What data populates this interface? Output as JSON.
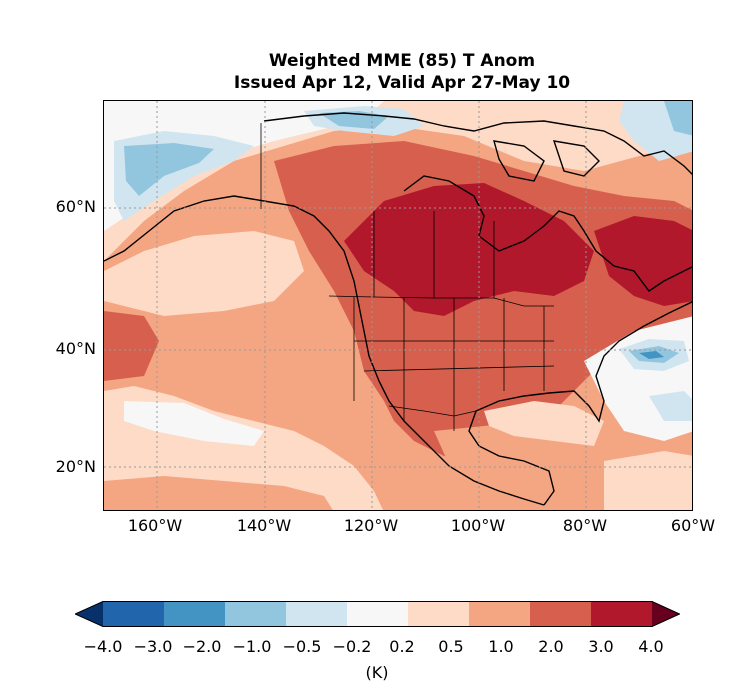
{
  "title_line1": "Weighted MME (85) T Anom",
  "title_line2": "Issued Apr 12, Valid Apr 27-May 10",
  "lat_labels": [
    "60°N",
    "40°N",
    "20°N"
  ],
  "lon_labels": [
    "160°W",
    "140°W",
    "120°W",
    "100°W",
    "80°W",
    "60°W"
  ],
  "colorbar": {
    "unit": "(K)",
    "ticks": [
      "−4.0",
      "−3.0",
      "−2.0",
      "−1.0",
      "−0.5",
      "−0.2",
      "0.2",
      "0.5",
      "1.0",
      "2.0",
      "3.0",
      "4.0"
    ],
    "colors": [
      "#08306b",
      "#2166ac",
      "#4393c3",
      "#92c5de",
      "#d1e5f0",
      "#f7f7f7",
      "#fddbc7",
      "#f4a582",
      "#d6604d",
      "#b2182b",
      "#67001f"
    ],
    "extend": "both"
  },
  "map": {
    "projection": "PlateCarree",
    "lon_range": [
      -170,
      -60
    ],
    "lat_range": [
      13,
      75
    ],
    "gridlines": "dotted"
  }
}
